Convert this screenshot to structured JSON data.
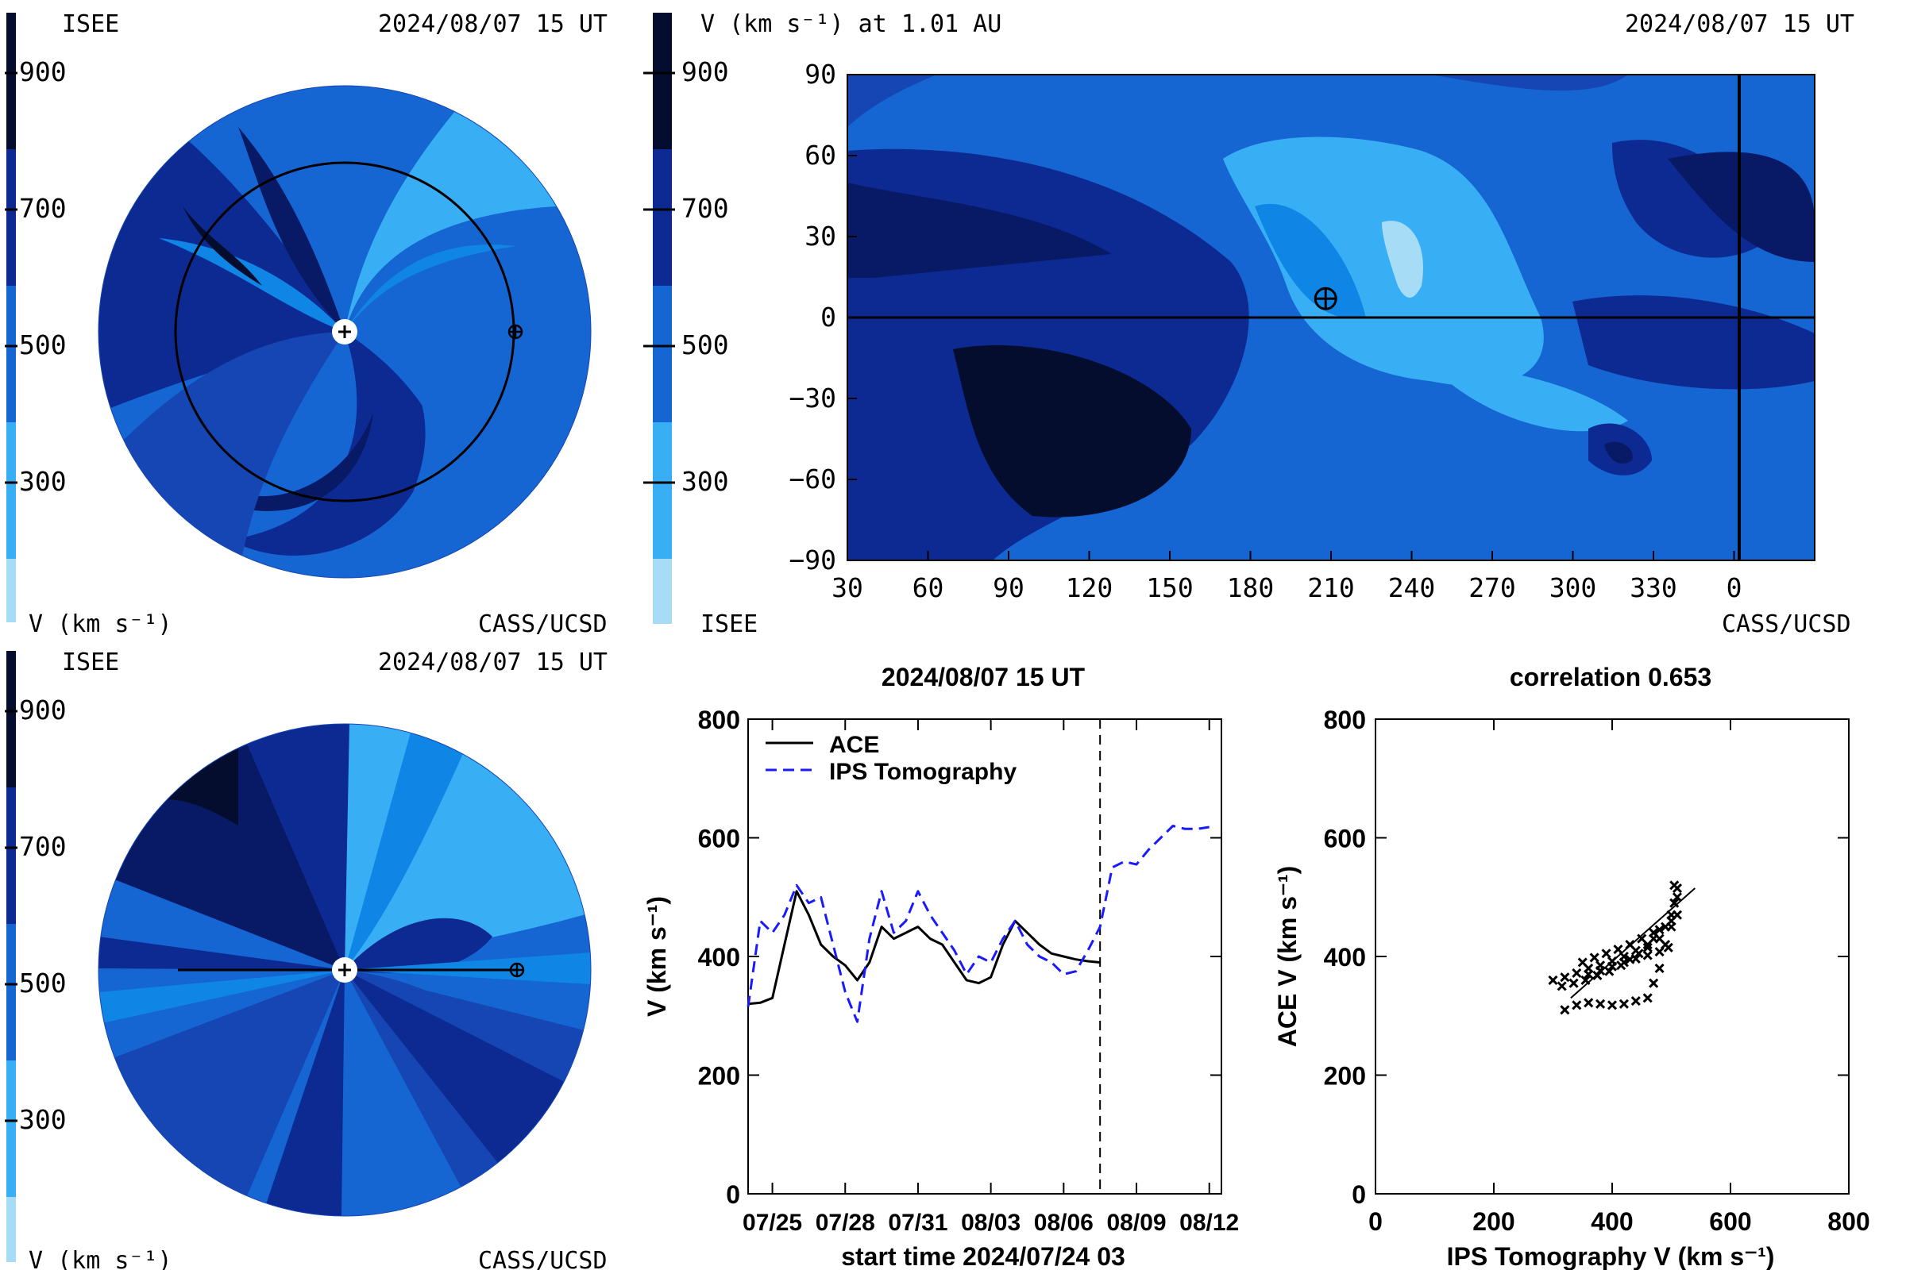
{
  "panels": {
    "polar_top": {
      "left_label": "ISEE",
      "date": "2024/08/07 15 UT",
      "colorbar_label": "V (km s⁻¹)",
      "credit": "CASS/UCSD",
      "colorbar_ticks": [
        "900",
        "700",
        "500",
        "300"
      ]
    },
    "polar_bottom": {
      "left_label": "ISEE",
      "date": "2024/08/07 15 UT",
      "colorbar_label": "V (km s⁻¹)",
      "credit": "CASS/UCSD",
      "colorbar_ticks": [
        "900",
        "700",
        "500",
        "300"
      ]
    },
    "map": {
      "title": "V (km s⁻¹) at 1.01 AU",
      "date": "2024/08/07 15 UT",
      "left_label": "ISEE",
      "credit": "CASS/UCSD",
      "colorbar_ticks": [
        "900",
        "700",
        "500",
        "300"
      ],
      "x_ticks": [
        "30",
        "60",
        "90",
        "120",
        "150",
        "180",
        "210",
        "240",
        "270",
        "300",
        "330",
        "0"
      ],
      "y_ticks": [
        "90",
        "60",
        "30",
        "0",
        "−30",
        "−60",
        "−90"
      ],
      "earth_marker": {
        "longitude": 208,
        "latitude": 7
      }
    }
  },
  "palette": [
    "#a6dcf5",
    "#38aff5",
    "#0f86e6",
    "#1566d2",
    "#1546b4",
    "#0c2a91",
    "#081a66",
    "#050d2e"
  ],
  "chart_data": [
    {
      "type": "line",
      "title": "2024/08/07 15 UT",
      "xlabel": "start time 2024/07/24 03",
      "ylabel": "V (km s⁻¹)",
      "x_ticks": [
        "07/25",
        "07/28",
        "07/31",
        "08/03",
        "08/06",
        "08/09",
        "08/12"
      ],
      "x_tick_days": [
        1,
        4,
        7,
        10,
        13,
        16,
        19
      ],
      "xlim": [
        0,
        19.5
      ],
      "ylim": [
        0,
        800
      ],
      "y_ticks": [
        0,
        200,
        400,
        600,
        800
      ],
      "now_day": 14.5,
      "legend": "top-left",
      "series": [
        {
          "name": "ACE",
          "style": "solid",
          "color": "#000000",
          "x": [
            0,
            0.5,
            1.0,
            1.5,
            2.0,
            2.5,
            3.0,
            3.5,
            4.0,
            4.5,
            5.0,
            5.5,
            6.0,
            6.5,
            7.0,
            7.5,
            8.0,
            8.5,
            9.0,
            9.5,
            10.0,
            10.5,
            11.0,
            11.5,
            12.0,
            12.5,
            13.0,
            13.5,
            14.0,
            14.5
          ],
          "y": [
            320,
            322,
            330,
            420,
            510,
            470,
            420,
            400,
            385,
            360,
            390,
            450,
            430,
            440,
            450,
            430,
            420,
            390,
            360,
            355,
            365,
            420,
            460,
            440,
            420,
            405,
            400,
            395,
            392,
            390
          ]
        },
        {
          "name": "IPS Tomography",
          "style": "dashed",
          "color": "#1a1aff",
          "x": [
            0,
            0.5,
            1.0,
            1.5,
            2.0,
            2.5,
            3.0,
            3.5,
            4.0,
            4.5,
            5.0,
            5.5,
            6.0,
            6.5,
            7.0,
            7.5,
            8.0,
            8.5,
            9.0,
            9.5,
            10.0,
            10.5,
            11.0,
            11.5,
            12.0,
            12.5,
            13.0,
            13.5,
            14.0,
            14.5,
            15.0,
            15.5,
            16.0,
            16.5,
            17.0,
            17.5,
            18.0,
            18.5,
            19.0
          ],
          "y": [
            315,
            460,
            440,
            470,
            520,
            490,
            500,
            420,
            340,
            290,
            430,
            510,
            440,
            460,
            510,
            470,
            440,
            410,
            370,
            400,
            390,
            430,
            460,
            420,
            400,
            390,
            370,
            375,
            410,
            450,
            550,
            560,
            555,
            580,
            600,
            620,
            615,
            615,
            618
          ]
        }
      ]
    },
    {
      "type": "scatter",
      "title": "correlation 0.653",
      "xlabel": "IPS Tomography V (km s⁻¹)",
      "ylabel": "ACE V (km s⁻¹)",
      "xlim": [
        0,
        800
      ],
      "ylim": [
        0,
        800
      ],
      "x_ticks": [
        0,
        200,
        400,
        600,
        800
      ],
      "y_ticks": [
        0,
        200,
        400,
        600,
        800
      ],
      "x": [
        300,
        320,
        340,
        360,
        380,
        400,
        420,
        440,
        460,
        480,
        500,
        510,
        320,
        340,
        360,
        380,
        400,
        420,
        440,
        460,
        470,
        480,
        490,
        500,
        505,
        510,
        315,
        335,
        355,
        375,
        395,
        415,
        430,
        445,
        460,
        470,
        480,
        350,
        370,
        390,
        410,
        430,
        450,
        470,
        490,
        500,
        510,
        360,
        380,
        400,
        420,
        440,
        460,
        480,
        495,
        505
      ],
      "y": [
        360,
        365,
        372,
        380,
        385,
        392,
        400,
        410,
        420,
        430,
        450,
        470,
        310,
        318,
        322,
        320,
        318,
        320,
        325,
        330,
        355,
        380,
        420,
        460,
        490,
        515,
        350,
        355,
        360,
        368,
        375,
        385,
        395,
        405,
        415,
        430,
        445,
        390,
        398,
        405,
        412,
        420,
        430,
        440,
        450,
        470,
        500,
        370,
        376,
        383,
        390,
        396,
        402,
        408,
        415,
        520
      ],
      "fit": {
        "x": [
          330,
          540
        ],
        "y": [
          330,
          515
        ]
      }
    }
  ]
}
